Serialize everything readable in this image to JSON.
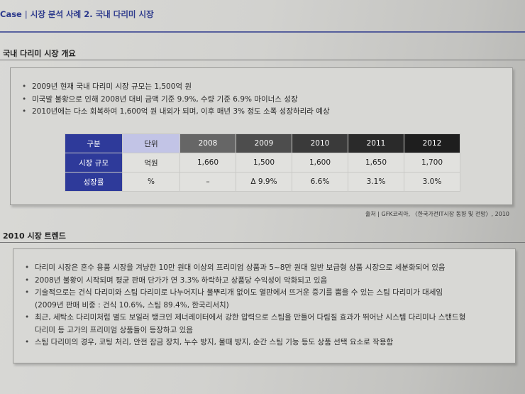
{
  "header": {
    "case_label": "Case",
    "title": "시장 분석 사례 2. 국내 다리미 시장"
  },
  "overview": {
    "title": "국내 다리미 시장 개요",
    "bullets": [
      "2009년 현재 국내 다리미 시장 규모는 1,500억 원",
      "미국발 불황으로 인해 2008년 대비 금액 기준 9.9%, 수량 기준 6.9% 마이너스 성장",
      "2010년에는 다소 회복하여 1,600억 원 내외가 되며, 이후 매년 3% 정도 소폭 성장하리라 예상"
    ],
    "table": {
      "header": [
        "구분",
        "단위",
        "2008",
        "2009",
        "2010",
        "2011",
        "2012"
      ],
      "rows": [
        [
          "시장 규모",
          "억원",
          "1,660",
          "1,500",
          "1,600",
          "1,650",
          "1,700"
        ],
        [
          "성장률",
          "%",
          "–",
          "Δ 9.9%",
          "6.6%",
          "3.1%",
          "3.0%"
        ]
      ]
    },
    "source": "출처 | GFK코리아, 〈한국가전IT시장 동향 및 전망〉, 2010"
  },
  "trend": {
    "title": "2010 시장 트렌드",
    "bullets": [
      {
        "line1": "다리미 시장은 혼수 용품 시장을 겨냥한 10만 원대 이상의 프리미엄 상품과 5~8만 원대 일반 보급형 상품 시장으로 세분화되어 있음",
        "line2": ""
      },
      {
        "line1": "2008년 불황이 시작되며 평균 판매 단가가 연 3.3% 하락하고 상품당 수익성이 악화되고 있음",
        "line2": ""
      },
      {
        "line1": "기술적으로는 건식 다리미와 스팀 다리미로 나누어지나 물뿌리개 없이도 열판에서 뜨거운 증기를 뿜을 수 있는 스팀 다리미가 대세임",
        "line2": "(2009년 판매 비중 : 건식 10.6%, 스팀 89.4%, 한국리서치)"
      },
      {
        "line1": "최근, 세탁소 다리미처럼 별도 보일러 탱크인 제너레이터에서 강한 압력으로 스팀을 만들어 다림질 효과가 뛰어난 시스템 다리미나 스탠드형",
        "line2": "다리미 등 고가의 프리미엄 상품들이 등장하고 있음"
      },
      {
        "line1": "스팀 다리미의 경우, 코팅 처리, 안전 잠금 장치, 누수 방지, 물때 방지, 순간 스팀 기능 등도 상품 선택 요소로 작용함",
        "line2": ""
      }
    ]
  }
}
